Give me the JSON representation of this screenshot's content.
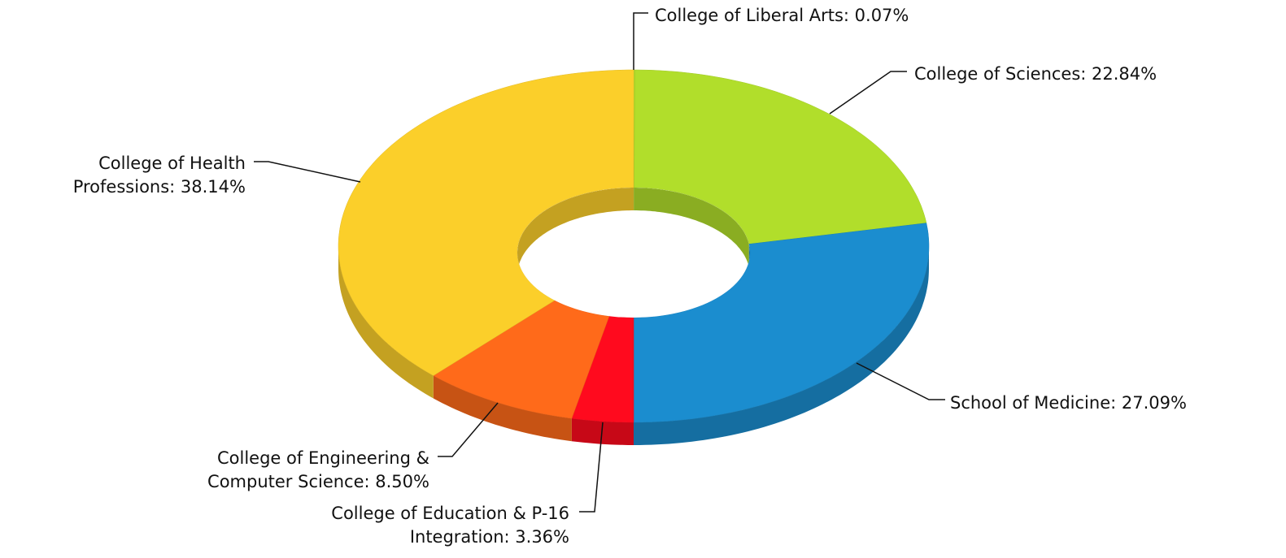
{
  "chart_data": {
    "type": "pie",
    "style": "3d-donut",
    "labels": [
      [
        "College of Liberal Arts: 0.07%"
      ],
      [
        "College of Sciences: 22.84%"
      ],
      [
        "School of Medicine: 27.09%"
      ],
      [
        "College of Education & P-16",
        "Integration: 3.36%"
      ],
      [
        "College of Engineering &",
        "Computer Science: 8.50%"
      ],
      [
        "College of Health",
        "Professions: 38.14%"
      ]
    ],
    "values": [
      0.07,
      22.84,
      27.09,
      3.36,
      8.5,
      38.14
    ],
    "colors": [
      "#b1de2b",
      "#b1de2b",
      "#1b8dcf",
      "#ff0a1e",
      "#ff6a1a",
      "#fbcf2a"
    ]
  }
}
